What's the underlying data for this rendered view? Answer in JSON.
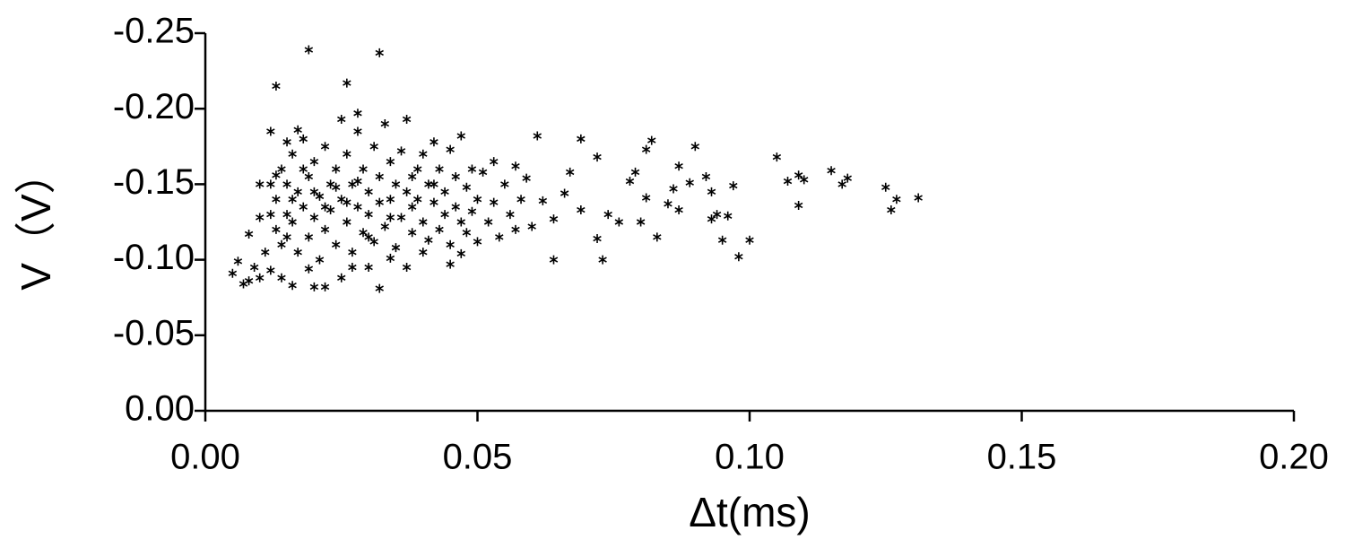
{
  "chart_data": {
    "type": "scatter",
    "x_label": "Δt(ms)",
    "y_label": "V（V）",
    "xlim": [
      0,
      0.2
    ],
    "ylim": [
      0,
      -0.25
    ],
    "xticks": [
      {
        "value": 0,
        "label": "0.00"
      },
      0.05,
      {
        "value": 0.1,
        "label": "0.10"
      },
      0.15,
      {
        "value": 0.2,
        "label": "0.20"
      }
    ],
    "yticks": [
      {
        "value": 0,
        "label": "0.00"
      },
      -0.05,
      {
        "value": -0.1,
        "label": "-0.10"
      },
      -0.15,
      {
        "value": -0.2,
        "label": "-0.20"
      },
      -0.25
    ],
    "series": [
      {
        "color": "#000000",
        "x": [
          0.019,
          0.032,
          0.013,
          0.026,
          0.028,
          0.105,
          0.115,
          0.131,
          0.127,
          0.126,
          0.125,
          0.118,
          0.117,
          0.11,
          0.109,
          0.109,
          0.107,
          0.1,
          0.098,
          0.097,
          0.096,
          0.095,
          0.094,
          0.093,
          0.093,
          0.092,
          0.09,
          0.089,
          0.087,
          0.087,
          0.086,
          0.085,
          0.083,
          0.082,
          0.081,
          0.081,
          0.08,
          0.079,
          0.078,
          0.076,
          0.074,
          0.072,
          0.072,
          0.073,
          0.069,
          0.069,
          0.067,
          0.066,
          0.064,
          0.064,
          0.062,
          0.061,
          0.06,
          0.059,
          0.005,
          0.006,
          0.007,
          0.008,
          0.008,
          0.009,
          0.01,
          0.01,
          0.01,
          0.011,
          0.012,
          0.012,
          0.013,
          0.014,
          0.015,
          0.016,
          0.017,
          0.019,
          0.02,
          0.022,
          0.025,
          0.027,
          0.03,
          0.032,
          0.034,
          0.037,
          0.04,
          0.045,
          0.047,
          0.013,
          0.013,
          0.014,
          0.014,
          0.015,
          0.015,
          0.016,
          0.016,
          0.017,
          0.017,
          0.018,
          0.018,
          0.019,
          0.019,
          0.02,
          0.02,
          0.021,
          0.021,
          0.022,
          0.022,
          0.023,
          0.023,
          0.024,
          0.024,
          0.025,
          0.025,
          0.026,
          0.026,
          0.027,
          0.027,
          0.028,
          0.028,
          0.029,
          0.029,
          0.03,
          0.03,
          0.031,
          0.031,
          0.032,
          0.032,
          0.033,
          0.033,
          0.034,
          0.034,
          0.035,
          0.035,
          0.036,
          0.036,
          0.037,
          0.037,
          0.038,
          0.038,
          0.039,
          0.039,
          0.04,
          0.04,
          0.041,
          0.041,
          0.042,
          0.042,
          0.043,
          0.043,
          0.044,
          0.044,
          0.045,
          0.045,
          0.046,
          0.046,
          0.047,
          0.047,
          0.048,
          0.048,
          0.049,
          0.049,
          0.05,
          0.05,
          0.051,
          0.052,
          0.053,
          0.053,
          0.054,
          0.055,
          0.056,
          0.057,
          0.057,
          0.058,
          0.012,
          0.012,
          0.015,
          0.018,
          0.02,
          0.022,
          0.024,
          0.026,
          0.028,
          0.03,
          0.034,
          0.038,
          0.042,
          0.016
        ],
        "values": [
          -0.239,
          -0.237,
          -0.215,
          -0.217,
          -0.197,
          -0.168,
          -0.159,
          -0.141,
          -0.14,
          -0.133,
          -0.148,
          -0.154,
          -0.15,
          -0.153,
          -0.156,
          -0.136,
          -0.152,
          -0.113,
          -0.102,
          -0.149,
          -0.129,
          -0.113,
          -0.13,
          -0.127,
          -0.145,
          -0.155,
          -0.175,
          -0.151,
          -0.162,
          -0.133,
          -0.147,
          -0.137,
          -0.115,
          -0.179,
          -0.173,
          -0.141,
          -0.125,
          -0.158,
          -0.152,
          -0.125,
          -0.13,
          -0.168,
          -0.114,
          -0.1,
          -0.18,
          -0.133,
          -0.158,
          -0.144,
          -0.1,
          -0.127,
          -0.139,
          -0.182,
          -0.122,
          -0.154,
          -0.091,
          -0.099,
          -0.084,
          -0.086,
          -0.117,
          -0.095,
          -0.15,
          -0.128,
          -0.088,
          -0.105,
          -0.185,
          -0.093,
          -0.156,
          -0.088,
          -0.178,
          -0.083,
          -0.186,
          -0.094,
          -0.082,
          -0.082,
          -0.088,
          -0.095,
          -0.095,
          -0.081,
          -0.101,
          -0.095,
          -0.105,
          -0.097,
          -0.104,
          -0.14,
          -0.12,
          -0.16,
          -0.11,
          -0.13,
          -0.15,
          -0.17,
          -0.125,
          -0.145,
          -0.105,
          -0.18,
          -0.135,
          -0.155,
          -0.115,
          -0.165,
          -0.128,
          -0.142,
          -0.1,
          -0.175,
          -0.12,
          -0.15,
          -0.133,
          -0.16,
          -0.11,
          -0.193,
          -0.14,
          -0.17,
          -0.125,
          -0.15,
          -0.105,
          -0.185,
          -0.135,
          -0.16,
          -0.118,
          -0.145,
          -0.13,
          -0.175,
          -0.112,
          -0.155,
          -0.138,
          -0.19,
          -0.122,
          -0.165,
          -0.14,
          -0.15,
          -0.108,
          -0.172,
          -0.128,
          -0.193,
          -0.145,
          -0.135,
          -0.118,
          -0.16,
          -0.14,
          -0.17,
          -0.125,
          -0.15,
          -0.113,
          -0.178,
          -0.138,
          -0.16,
          -0.12,
          -0.145,
          -0.13,
          -0.173,
          -0.11,
          -0.155,
          -0.135,
          -0.182,
          -0.125,
          -0.148,
          -0.118,
          -0.16,
          -0.132,
          -0.14,
          -0.112,
          -0.158,
          -0.125,
          -0.165,
          -0.138,
          -0.115,
          -0.15,
          -0.13,
          -0.162,
          -0.12,
          -0.14,
          -0.13,
          -0.15,
          -0.115,
          -0.16,
          -0.145,
          -0.135,
          -0.148,
          -0.138,
          -0.152,
          -0.115,
          -0.128,
          -0.155,
          -0.15,
          -0.14
        ]
      }
    ]
  }
}
